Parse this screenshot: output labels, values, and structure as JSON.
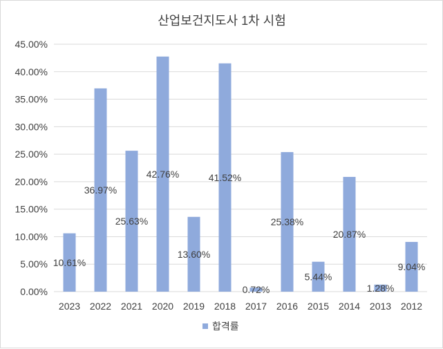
{
  "chart_data": {
    "type": "bar",
    "title": "산업보건지도사 1차 시험",
    "categories": [
      "2023",
      "2022",
      "2021",
      "2020",
      "2019",
      "2018",
      "2017",
      "2016",
      "2015",
      "2014",
      "2013",
      "2012"
    ],
    "series": [
      {
        "name": "합격률",
        "values": [
          10.61,
          36.97,
          25.63,
          42.76,
          13.6,
          41.52,
          0.72,
          25.38,
          5.44,
          20.87,
          1.28,
          9.04
        ],
        "labels": [
          "10.61%",
          "36.97%",
          "25.63%",
          "42.76%",
          "13.60%",
          "41.52%",
          "0.72%",
          "25.38%",
          "5.44%",
          "20.87%",
          "1.28%",
          "9.04%"
        ],
        "color": "#8faadc"
      }
    ],
    "ylim": [
      0,
      45
    ],
    "yticks": [
      "0.00%",
      "5.00%",
      "10.00%",
      "15.00%",
      "20.00%",
      "25.00%",
      "30.00%",
      "35.00%",
      "40.00%",
      "45.00%"
    ],
    "grid": true,
    "legend_position": "bottom"
  }
}
